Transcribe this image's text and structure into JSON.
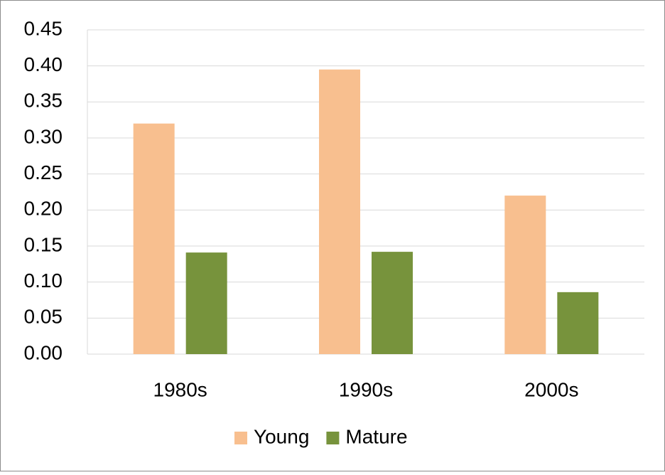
{
  "chart_data": {
    "type": "bar",
    "categories": [
      "1980s",
      "1990s",
      "2000s"
    ],
    "series": [
      {
        "name": "Young",
        "color": "#f8bf8f",
        "values": [
          0.32,
          0.395,
          0.22
        ]
      },
      {
        "name": "Mature",
        "color": "#77933c",
        "values": [
          0.141,
          0.142,
          0.086
        ]
      }
    ],
    "ylim": [
      0,
      0.45
    ],
    "yticks": [
      {
        "value": 0,
        "label": "0.00"
      },
      0.05,
      {
        "value": 0.1,
        "label": "0.10"
      },
      0.15,
      {
        "value": 0.2,
        "label": "0.20"
      },
      0.25,
      {
        "value": 0.3,
        "label": "0.30"
      },
      0.35,
      {
        "value": 0.4,
        "label": "0.40"
      },
      0.45
    ],
    "grid": true,
    "legend": "bottom"
  }
}
